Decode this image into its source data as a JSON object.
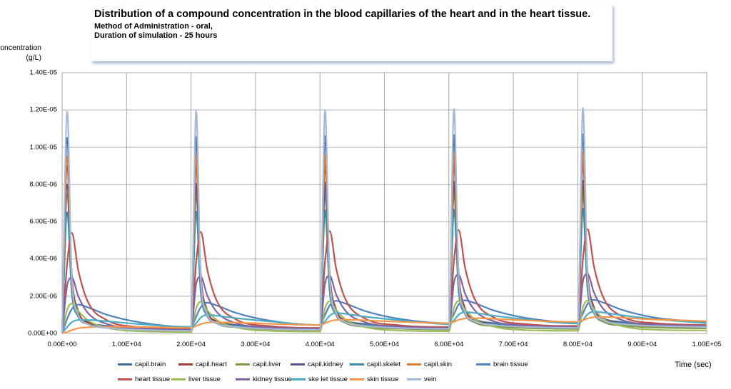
{
  "chart_data": {
    "type": "line",
    "title": "Distribution of a compound concentration in the blood capillaries of the heart and in the heart tissue.",
    "subtitle_lines": [
      "Method of Administration  - oral,",
      "Duration of simulation - 25 hours"
    ],
    "ylabel_lines": [
      "Concentration",
      "(g/L)"
    ],
    "xlabel": "Time (sec)",
    "xlim": [
      0,
      100000
    ],
    "ylim": [
      0,
      1.4e-05
    ],
    "grid": true,
    "legend_placement": "bottom",
    "x_ticks": [
      0,
      10000,
      20000,
      30000,
      40000,
      50000,
      60000,
      70000,
      80000,
      90000,
      100000
    ],
    "x_tick_labels": [
      "0.00E+00",
      "1.00E+04",
      "2.00E+04",
      "3.00E+04",
      "4.00E+04",
      "5.00E+04",
      "6.00E+04",
      "7.00E+04",
      "8.00E+04",
      "9.00E+04",
      "1.00E+05"
    ],
    "y_ticks": [
      0,
      2e-06,
      4e-06,
      6e-06,
      8e-06,
      1e-05,
      1.2e-05,
      1.4e-05
    ],
    "y_tick_labels": [
      "0.00E+00",
      "2.00E-06",
      "4.00E-06",
      "6.00E-06",
      "8.00E-06",
      "1.00E-05",
      "1.20E-05",
      "1.40E-05"
    ],
    "x": [
      0,
      800,
      1500,
      2500,
      4000,
      7000,
      12000,
      19900,
      20000,
      20800,
      21500,
      22500,
      24000,
      27000,
      32000,
      39900,
      40000,
      40800,
      41500,
      42500,
      44000,
      47000,
      52000,
      59900,
      60000,
      60800,
      61500,
      62500,
      64000,
      67000,
      72000,
      79900,
      80000,
      80800,
      81500,
      82500,
      84000,
      87000,
      92000,
      99900
    ],
    "series": [
      {
        "name": "capil.brain",
        "color": "#3C6AA0",
        "values": [
          0,
          1.05e-05,
          2.8e-06,
          1e-06,
          6e-07,
          4e-07,
          2.5e-07,
          2e-07,
          2e-07,
          1.055e-05,
          2.85e-06,
          1.05e-06,
          6.5e-07,
          4.5e-07,
          3e-07,
          2.5e-07,
          2.5e-07,
          1.06e-05,
          2.9e-06,
          1.1e-06,
          7e-07,
          5e-07,
          3.5e-07,
          3e-07,
          3e-07,
          1.065e-05,
          2.95e-06,
          1.15e-06,
          7.5e-07,
          5.5e-07,
          4e-07,
          3.5e-07,
          3.5e-07,
          1.07e-05,
          3e-06,
          1.2e-06,
          8e-07,
          6e-07,
          4.5e-07,
          4e-07
        ]
      },
      {
        "name": "capil.heart",
        "color": "#A33D3A",
        "values": [
          0,
          9e-06,
          3.2e-06,
          1.2e-06,
          6e-07,
          3.5e-07,
          2.2e-07,
          1.7e-07,
          1.7e-07,
          9.05e-06,
          3.25e-06,
          1.25e-06,
          6.5e-07,
          4e-07,
          2.7e-07,
          2.2e-07,
          2.2e-07,
          9.1e-06,
          3.3e-06,
          1.3e-06,
          7e-07,
          4.5e-07,
          3.2e-07,
          2.7e-07,
          2.7e-07,
          9.15e-06,
          3.35e-06,
          1.35e-06,
          7.5e-07,
          5e-07,
          3.7e-07,
          3.2e-07,
          3.2e-07,
          9.2e-06,
          3.4e-06,
          1.4e-06,
          8e-07,
          5.5e-07,
          4.2e-07,
          3.7e-07
        ]
      },
      {
        "name": "capil.liver",
        "color": "#7E9A48",
        "values": [
          0,
          7.5e-06,
          2.5e-06,
          1e-06,
          5e-07,
          3e-07,
          2e-07,
          1.5e-07,
          1.5e-07,
          7.53e-06,
          2.53e-06,
          1.03e-06,
          5.3e-07,
          3.3e-07,
          2.3e-07,
          1.8e-07,
          1.8e-07,
          7.56e-06,
          2.56e-06,
          1.06e-06,
          5.6e-07,
          3.6e-07,
          2.6e-07,
          2.1e-07,
          2.1e-07,
          7.59e-06,
          2.59e-06,
          1.09e-06,
          5.9e-07,
          3.9e-07,
          2.9e-07,
          2.4e-07,
          2.4e-07,
          7.62e-06,
          2.62e-06,
          1.12e-06,
          6.2e-07,
          4.2e-07,
          3.2e-07,
          2.7e-07
        ]
      },
      {
        "name": "capil.kidney",
        "color": "#664F86",
        "values": [
          0,
          8e-06,
          2.6e-06,
          1e-06,
          5e-07,
          3e-07,
          2e-07,
          1.5e-07,
          1.5e-07,
          8.05e-06,
          2.65e-06,
          1.05e-06,
          5.5e-07,
          3.5e-07,
          2.5e-07,
          2e-07,
          2e-07,
          8.1e-06,
          2.7e-06,
          1.1e-06,
          6e-07,
          4e-07,
          3e-07,
          2.5e-07,
          2.5e-07,
          8.15e-06,
          2.75e-06,
          1.15e-06,
          6.5e-07,
          4.5e-07,
          3.5e-07,
          3e-07,
          3e-07,
          8.2e-06,
          2.8e-06,
          1.2e-06,
          7e-07,
          5e-07,
          4e-07,
          3.5e-07
        ]
      },
      {
        "name": "capil.skelet",
        "color": "#3A8DA6",
        "values": [
          0,
          6.5e-06,
          2.2e-06,
          9e-07,
          5e-07,
          3.5e-07,
          2.5e-07,
          2e-07,
          2e-07,
          6.55e-06,
          2.25e-06,
          9.5e-07,
          5.5e-07,
          4e-07,
          3e-07,
          2.5e-07,
          2.5e-07,
          6.6e-06,
          2.3e-06,
          1e-06,
          6e-07,
          4.5e-07,
          3.5e-07,
          3e-07,
          3e-07,
          6.65e-06,
          2.35e-06,
          1.05e-06,
          6.5e-07,
          5e-07,
          4e-07,
          3.5e-07,
          3.5e-07,
          6.7e-06,
          2.4e-06,
          1.1e-06,
          7e-07,
          5.5e-07,
          4.5e-07,
          4e-07
        ]
      },
      {
        "name": "capil.skin",
        "color": "#D5803A",
        "values": [
          0,
          9.5e-06,
          2.9e-06,
          1e-06,
          5e-07,
          3e-07,
          2e-07,
          1.5e-07,
          1.5e-07,
          9.55e-06,
          2.95e-06,
          1.05e-06,
          5.5e-07,
          3.5e-07,
          2.5e-07,
          2e-07,
          2e-07,
          9.6e-06,
          3e-06,
          1.1e-06,
          6e-07,
          4e-07,
          3e-07,
          2.5e-07,
          2.5e-07,
          9.65e-06,
          3.05e-06,
          1.15e-06,
          6.5e-07,
          4.5e-07,
          3.5e-07,
          3e-07,
          3e-07,
          9.7e-06,
          3.1e-06,
          1.2e-06,
          7e-07,
          5e-07,
          4e-07,
          3.5e-07
        ]
      },
      {
        "name": "brain  tissue",
        "color": "#4F81BD",
        "values": [
          0,
          8e-07,
          1.3e-06,
          1.55e-06,
          1.4e-06,
          1e-06,
          6e-07,
          3.5e-07,
          3.5e-07,
          9e-07,
          1.4e-06,
          1.65e-06,
          1.5e-06,
          1.1e-06,
          7e-07,
          4.5e-07,
          4.5e-07,
          1e-06,
          1.5e-06,
          1.75e-06,
          1.6e-06,
          1.2e-06,
          8e-07,
          5.5e-07,
          5.5e-07,
          1.05e-06,
          1.55e-06,
          1.78e-06,
          1.63e-06,
          1.23e-06,
          8.3e-07,
          5.8e-07,
          5.8e-07,
          1.08e-06,
          1.58e-06,
          1.8e-06,
          1.65e-06,
          1.25e-06,
          8.5e-07,
          6e-07
        ]
      },
      {
        "name": "heart  tissue",
        "color": "#C0504D",
        "values": [
          0,
          3.8e-06,
          5.4e-06,
          3.4e-06,
          1.7e-06,
          7e-07,
          3.5e-07,
          2.5e-07,
          2.5e-07,
          3.85e-06,
          5.45e-06,
          3.45e-06,
          1.75e-06,
          7.5e-07,
          4e-07,
          3e-07,
          3e-07,
          3.9e-06,
          5.5e-06,
          3.5e-06,
          1.8e-06,
          8e-07,
          4.5e-07,
          3.5e-07,
          3.5e-07,
          3.95e-06,
          5.55e-06,
          3.55e-06,
          1.85e-06,
          8.5e-07,
          5e-07,
          4e-07,
          4e-07,
          4e-06,
          5.6e-06,
          3.6e-06,
          1.9e-06,
          9e-07,
          5.5e-07,
          4.5e-07
        ]
      },
      {
        "name": "liver  tissue",
        "color": "#9BBB59",
        "values": [
          0,
          1.3e-06,
          1.6e-06,
          1.2e-06,
          7e-07,
          3e-07,
          1.2e-07,
          8e-08,
          8e-08,
          1.35e-06,
          1.7e-06,
          1.25e-06,
          7.2e-07,
          3.2e-07,
          1.4e-07,
          1e-07,
          1e-07,
          1.37e-06,
          1.72e-06,
          1.27e-06,
          7.4e-07,
          3.4e-07,
          1.6e-07,
          1.2e-07,
          1.2e-07,
          1.39e-06,
          1.74e-06,
          1.29e-06,
          7.6e-07,
          3.6e-07,
          1.8e-07,
          1.4e-07,
          1.4e-07,
          1.41e-06,
          1.76e-06,
          1.31e-06,
          7.8e-07,
          3.8e-07,
          2e-07,
          1.6e-07
        ]
      },
      {
        "name": "kidney tissue",
        "color": "#8064A2",
        "values": [
          0,
          2.6e-06,
          3e-06,
          2e-06,
          1.1e-06,
          5e-07,
          2.8e-07,
          2e-07,
          2e-07,
          2.65e-06,
          3.05e-06,
          2.05e-06,
          1.15e-06,
          5.5e-07,
          3.3e-07,
          2.5e-07,
          2.5e-07,
          2.7e-06,
          3.1e-06,
          2.1e-06,
          1.2e-06,
          6e-07,
          3.8e-07,
          3e-07,
          3e-07,
          2.75e-06,
          3.15e-06,
          2.15e-06,
          1.25e-06,
          6.5e-07,
          4.3e-07,
          3.5e-07,
          3.5e-07,
          2.8e-06,
          3.2e-06,
          2.2e-06,
          1.3e-06,
          7e-07,
          4.8e-07,
          4e-07
        ]
      },
      {
        "name": "ske let tissue",
        "color": "#4BACC6",
        "values": [
          0,
          3.5e-07,
          6e-07,
          7.2e-07,
          7.2e-07,
          6.5e-07,
          5e-07,
          3.5e-07,
          3.5e-07,
          5.5e-07,
          8.5e-07,
          1e-06,
          9.5e-07,
          8.2e-07,
          6.5e-07,
          4.5e-07,
          4.5e-07,
          6.5e-07,
          9.5e-07,
          1.1e-06,
          1.05e-06,
          9e-07,
          7.2e-07,
          5e-07,
          5e-07,
          7e-07,
          1e-06,
          1.15e-06,
          1.1e-06,
          9.5e-07,
          7.5e-07,
          5.3e-07,
          5.3e-07,
          7.2e-07,
          1.02e-06,
          1.17e-06,
          1.12e-06,
          9.7e-07,
          7.7e-07,
          5.5e-07
        ]
      },
      {
        "name": "skin tissue",
        "color": "#F79646",
        "values": [
          0,
          8e-08,
          1.8e-07,
          2.8e-07,
          3.3e-07,
          3.6e-07,
          3.5e-07,
          3e-07,
          3e-07,
          4e-07,
          5e-07,
          5.8e-07,
          6e-07,
          5.8e-07,
          5.2e-07,
          4.5e-07,
          4.5e-07,
          5.5e-07,
          6.5e-07,
          7.2e-07,
          7.4e-07,
          7e-07,
          6.3e-07,
          5.5e-07,
          5.5e-07,
          6.3e-07,
          7.3e-07,
          8e-07,
          8.2e-07,
          7.8e-07,
          7e-07,
          6.2e-07,
          6.2e-07,
          7e-07,
          8e-07,
          8.7e-07,
          8.8e-07,
          8.4e-07,
          7.5e-07,
          6.6e-07
        ]
      },
      {
        "name": "vein",
        "color": "#A5B8D8",
        "values": [
          0,
          1.19e-05,
          3e-06,
          1e-06,
          5e-07,
          3e-07,
          2e-07,
          1.5e-07,
          1.5e-07,
          1.195e-05,
          3.05e-06,
          1.05e-06,
          5.5e-07,
          3.5e-07,
          2.5e-07,
          2e-07,
          2e-07,
          1.2e-05,
          3.1e-06,
          1.1e-06,
          6e-07,
          4e-07,
          3e-07,
          2.5e-07,
          2.5e-07,
          1.205e-05,
          3.15e-06,
          1.15e-06,
          6.5e-07,
          4.5e-07,
          3.5e-07,
          3e-07,
          3e-07,
          1.21e-05,
          3.2e-06,
          1.2e-06,
          7e-07,
          5e-07,
          4e-07,
          3.5e-07
        ]
      }
    ]
  }
}
